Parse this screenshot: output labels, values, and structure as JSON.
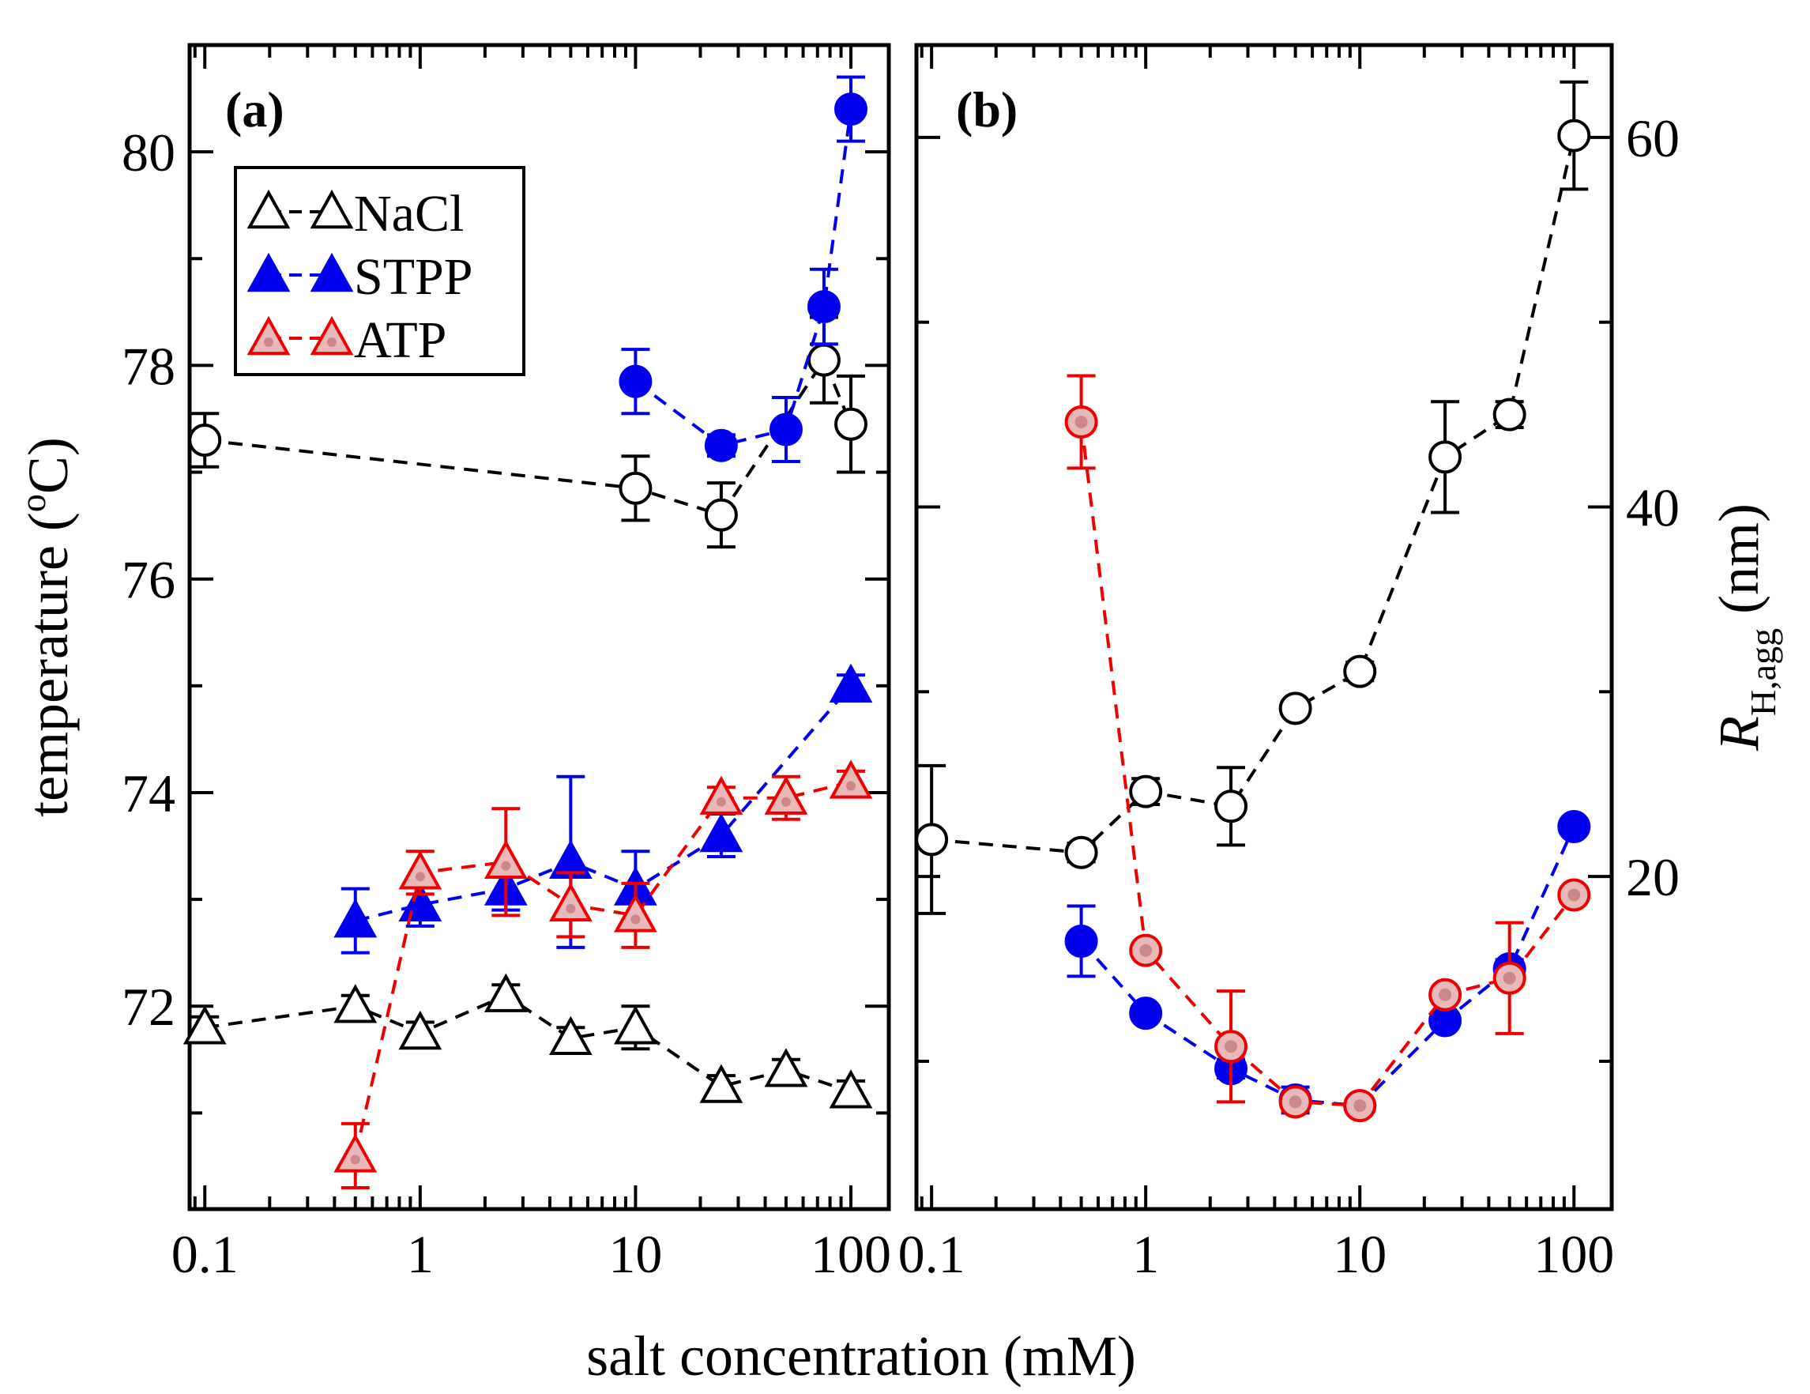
{
  "chart_data": [
    {
      "panel": "(a)",
      "type": "line",
      "xscale": "log",
      "xlim": [
        0.085,
        150
      ],
      "ylim": [
        70.1,
        81.0
      ],
      "xticks": [
        0.1,
        1,
        10,
        100
      ],
      "xtick_labels": [
        "0.1",
        "1",
        "10",
        "100"
      ],
      "yticks": [
        72,
        74,
        76,
        78,
        80
      ],
      "ytick_labels": [
        "72",
        "74",
        "76",
        "78",
        "80"
      ],
      "ylabel": "temperature (",
      "ylabel_sup": "o",
      "ylabel_tail": "C)",
      "legend": {
        "position": "top-left",
        "entries": [
          {
            "label": "NaCl",
            "color": "#000000",
            "marker": "triangle-open"
          },
          {
            "label": "STPP",
            "color": "#0000ee",
            "marker": "triangle-filled"
          },
          {
            "label": "ATP",
            "color": "#ee0000",
            "marker": "triangle-dotted"
          }
        ]
      },
      "series": [
        {
          "name": "NaCl circle",
          "color": "#000000",
          "marker": "circle-open",
          "x": [
            0.1,
            10,
            25,
            75,
            100
          ],
          "y": [
            77.3,
            76.85,
            76.6,
            78.05,
            77.45
          ],
          "err": [
            0.25,
            0.3,
            0.3,
            0.4,
            0.45
          ]
        },
        {
          "name": "STPP circle",
          "color": "#0000ee",
          "marker": "circle-filled",
          "x": [
            10,
            25,
            50,
            75,
            100
          ],
          "y": [
            77.85,
            77.25,
            77.4,
            78.55,
            80.4
          ],
          "err": [
            0.3,
            0.1,
            0.3,
            0.35,
            0.3
          ]
        },
        {
          "name": "NaCl",
          "color": "#000000",
          "marker": "triangle-open",
          "x": [
            0.1,
            0.5,
            1,
            2.5,
            5,
            10,
            25,
            50,
            100
          ],
          "y": [
            71.8,
            72.0,
            71.75,
            72.1,
            71.7,
            71.8,
            71.25,
            71.4,
            71.2
          ],
          "err": [
            0.1,
            0.1,
            0.1,
            0.1,
            0.1,
            0.2,
            0.1,
            0.1,
            0.1
          ]
        },
        {
          "name": "STPP",
          "color": "#0000ee",
          "marker": "triangle-filled",
          "x": [
            0.5,
            1,
            2.5,
            5,
            10,
            25,
            100
          ],
          "y": [
            72.8,
            72.95,
            73.1,
            73.35,
            73.1,
            73.6,
            75.0
          ],
          "err": [
            0.3,
            0.2,
            0.2,
            0.8,
            0.35,
            0.2,
            0.1
          ]
        },
        {
          "name": "ATP",
          "color": "#ee0000",
          "marker": "triangle-dotted",
          "x": [
            0.5,
            1,
            2.5,
            5,
            10,
            25,
            50,
            100
          ],
          "y": [
            70.6,
            73.25,
            73.35,
            72.95,
            72.85,
            73.95,
            73.95,
            74.1
          ],
          "err": [
            0.3,
            0.2,
            0.5,
            0.3,
            0.3,
            0.1,
            0.2,
            0.1
          ]
        }
      ]
    },
    {
      "panel": "(b)",
      "type": "line",
      "xscale": "log",
      "xlim": [
        0.085,
        150
      ],
      "ylim": [
        2,
        65
      ],
      "xticks": [
        0.1,
        1,
        10,
        100
      ],
      "xtick_labels": [
        "0.1",
        "1",
        "10",
        "100"
      ],
      "yticks": [
        20,
        40,
        60
      ],
      "ytick_labels": [
        "20",
        "40",
        "60"
      ],
      "ylabel": "R",
      "ylabel_sub": "H,agg",
      "ylabel_tail": " (nm)",
      "series": [
        {
          "name": "NaCl",
          "color": "#000000",
          "marker": "circle-open",
          "x": [
            0.1,
            0.5,
            1,
            2.5,
            5,
            10,
            25,
            50,
            100
          ],
          "y": [
            22.0,
            21.3,
            24.6,
            23.8,
            29.1,
            31.1,
            42.7,
            45.0,
            60.1
          ],
          "err": [
            4.0,
            0.5,
            0.7,
            2.1,
            0.4,
            0.5,
            3.0,
            0.7,
            2.9
          ]
        },
        {
          "name": "STPP",
          "color": "#0000ee",
          "marker": "circle-filled",
          "x": [
            0.5,
            1,
            2.5,
            5,
            10,
            25,
            50,
            100
          ],
          "y": [
            16.5,
            12.6,
            9.6,
            7.9,
            7.6,
            12.2,
            15.0,
            22.7
          ],
          "err": [
            1.9,
            0.3,
            0.5,
            0.7,
            0.3,
            0.3,
            0.5,
            0.2
          ]
        },
        {
          "name": "ATP",
          "color": "#ee0000",
          "marker": "circle-dotted",
          "x": [
            0.5,
            1,
            2.5,
            5,
            10,
            25,
            50,
            100
          ],
          "y": [
            44.6,
            16.0,
            10.8,
            7.8,
            7.6,
            13.6,
            14.5,
            19.0
          ],
          "err": [
            2.5,
            0.3,
            3.0,
            0.5,
            0.3,
            0.3,
            3.0,
            0.3
          ]
        }
      ]
    }
  ],
  "xlabel": "salt concentration (mM)"
}
